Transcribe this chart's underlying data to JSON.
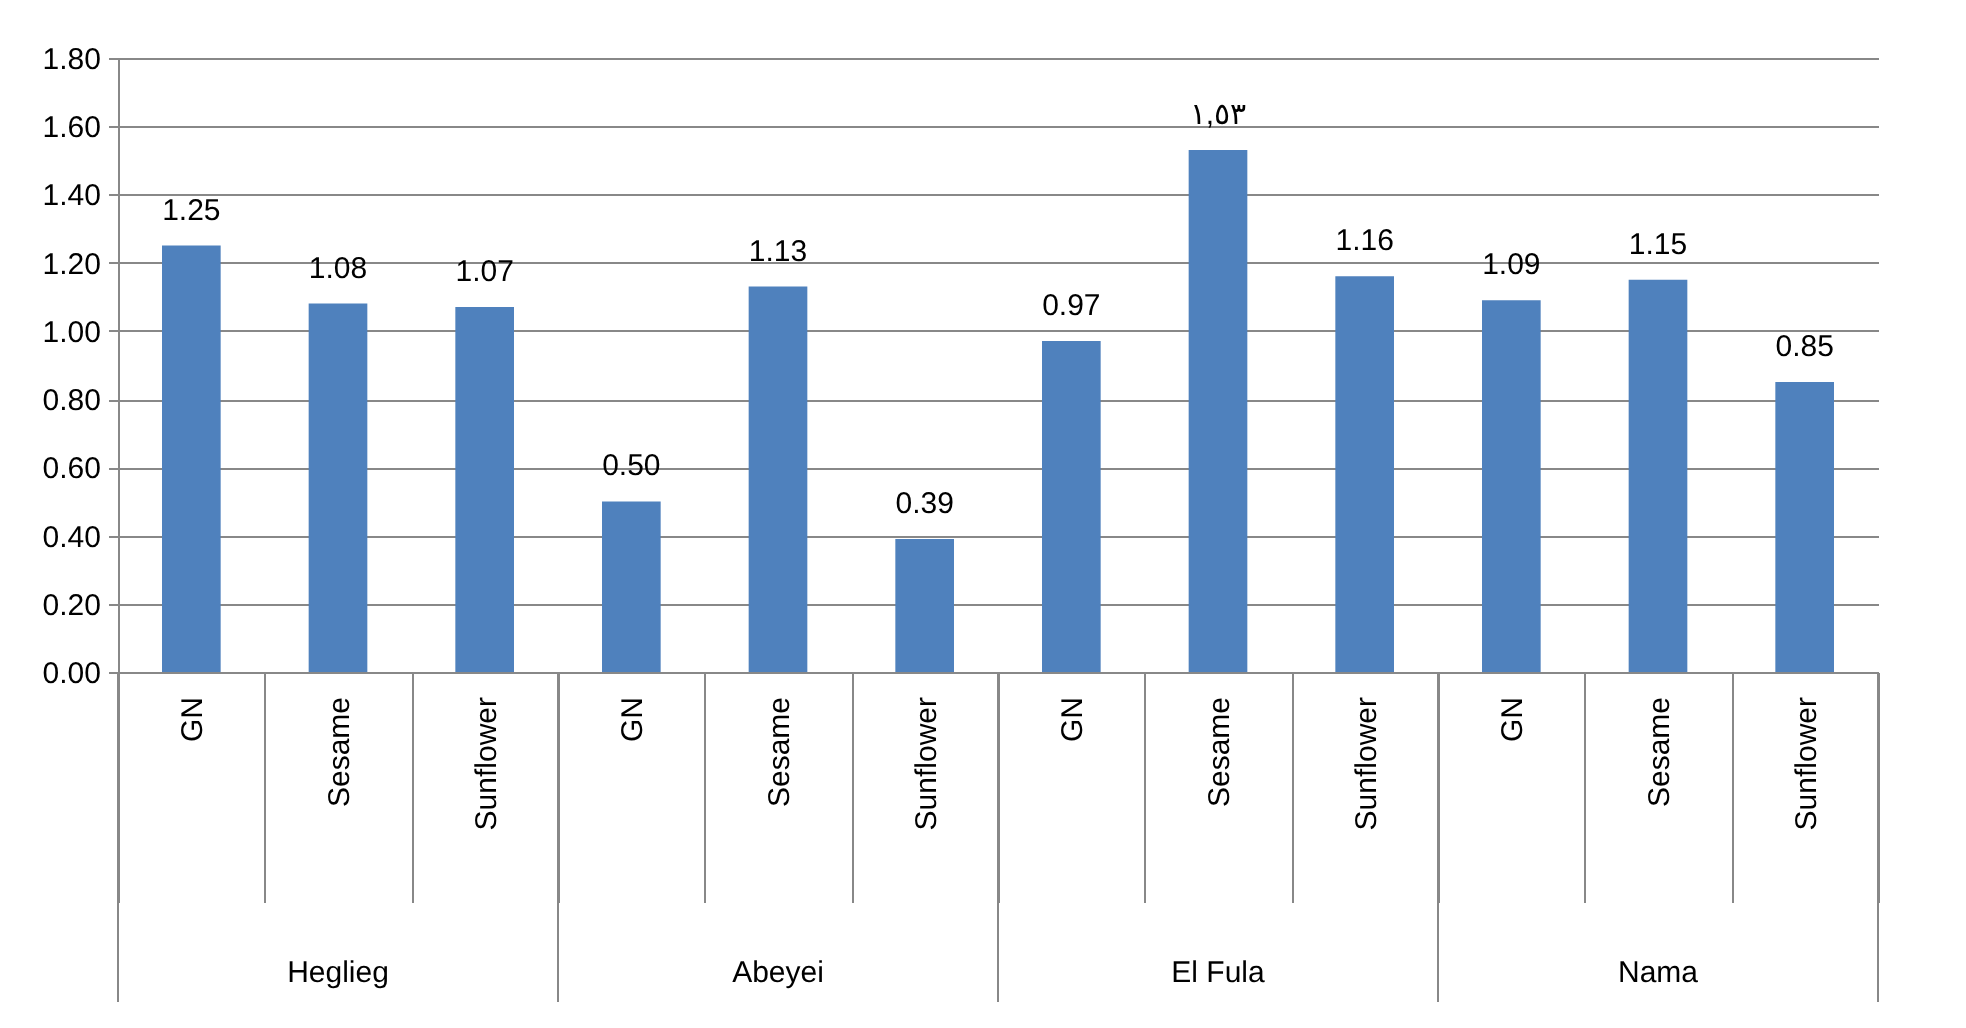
{
  "chart_data": {
    "type": "bar",
    "categories": [
      "GN",
      "Sesame",
      "Sunflower",
      "GN",
      "Sesame",
      "Sunflower",
      "GN",
      "Sesame",
      "Sunflower",
      "GN",
      "Sesame",
      "Sunflower"
    ],
    "values": [
      1.25,
      1.08,
      1.07,
      0.5,
      1.13,
      0.39,
      0.97,
      1.53,
      1.16,
      1.09,
      1.15,
      0.85
    ],
    "value_labels": [
      "1.25",
      "1.08",
      "1.07",
      "0.50",
      "1.13",
      "0.39",
      "0.97",
      "١,٥٣",
      "1.16",
      "1.09",
      "1.15",
      "0.85"
    ],
    "color": "#4f81bd",
    "annotations": [
      "Heglieg",
      "Abeyei",
      "El Fula",
      "Nama"
    ],
    "ylim": [
      0,
      1.8
    ],
    "yticks": [
      {
        "value": 0,
        "label": "0.00"
      },
      {
        "value": 0.2,
        "label": "0.20"
      },
      {
        "value": 0.4,
        "label": "0.40"
      },
      {
        "value": 0.6,
        "label": "0.60"
      },
      {
        "value": 0.8,
        "label": "0.80"
      },
      {
        "value": 1.0,
        "label": "1.00"
      },
      {
        "value": 1.2,
        "label": "1.20"
      },
      {
        "value": 1.4,
        "label": "1.40"
      },
      {
        "value": 1.6,
        "label": "1.60"
      },
      {
        "value": 1.8,
        "label": "1.80"
      }
    ],
    "grid": "y"
  }
}
